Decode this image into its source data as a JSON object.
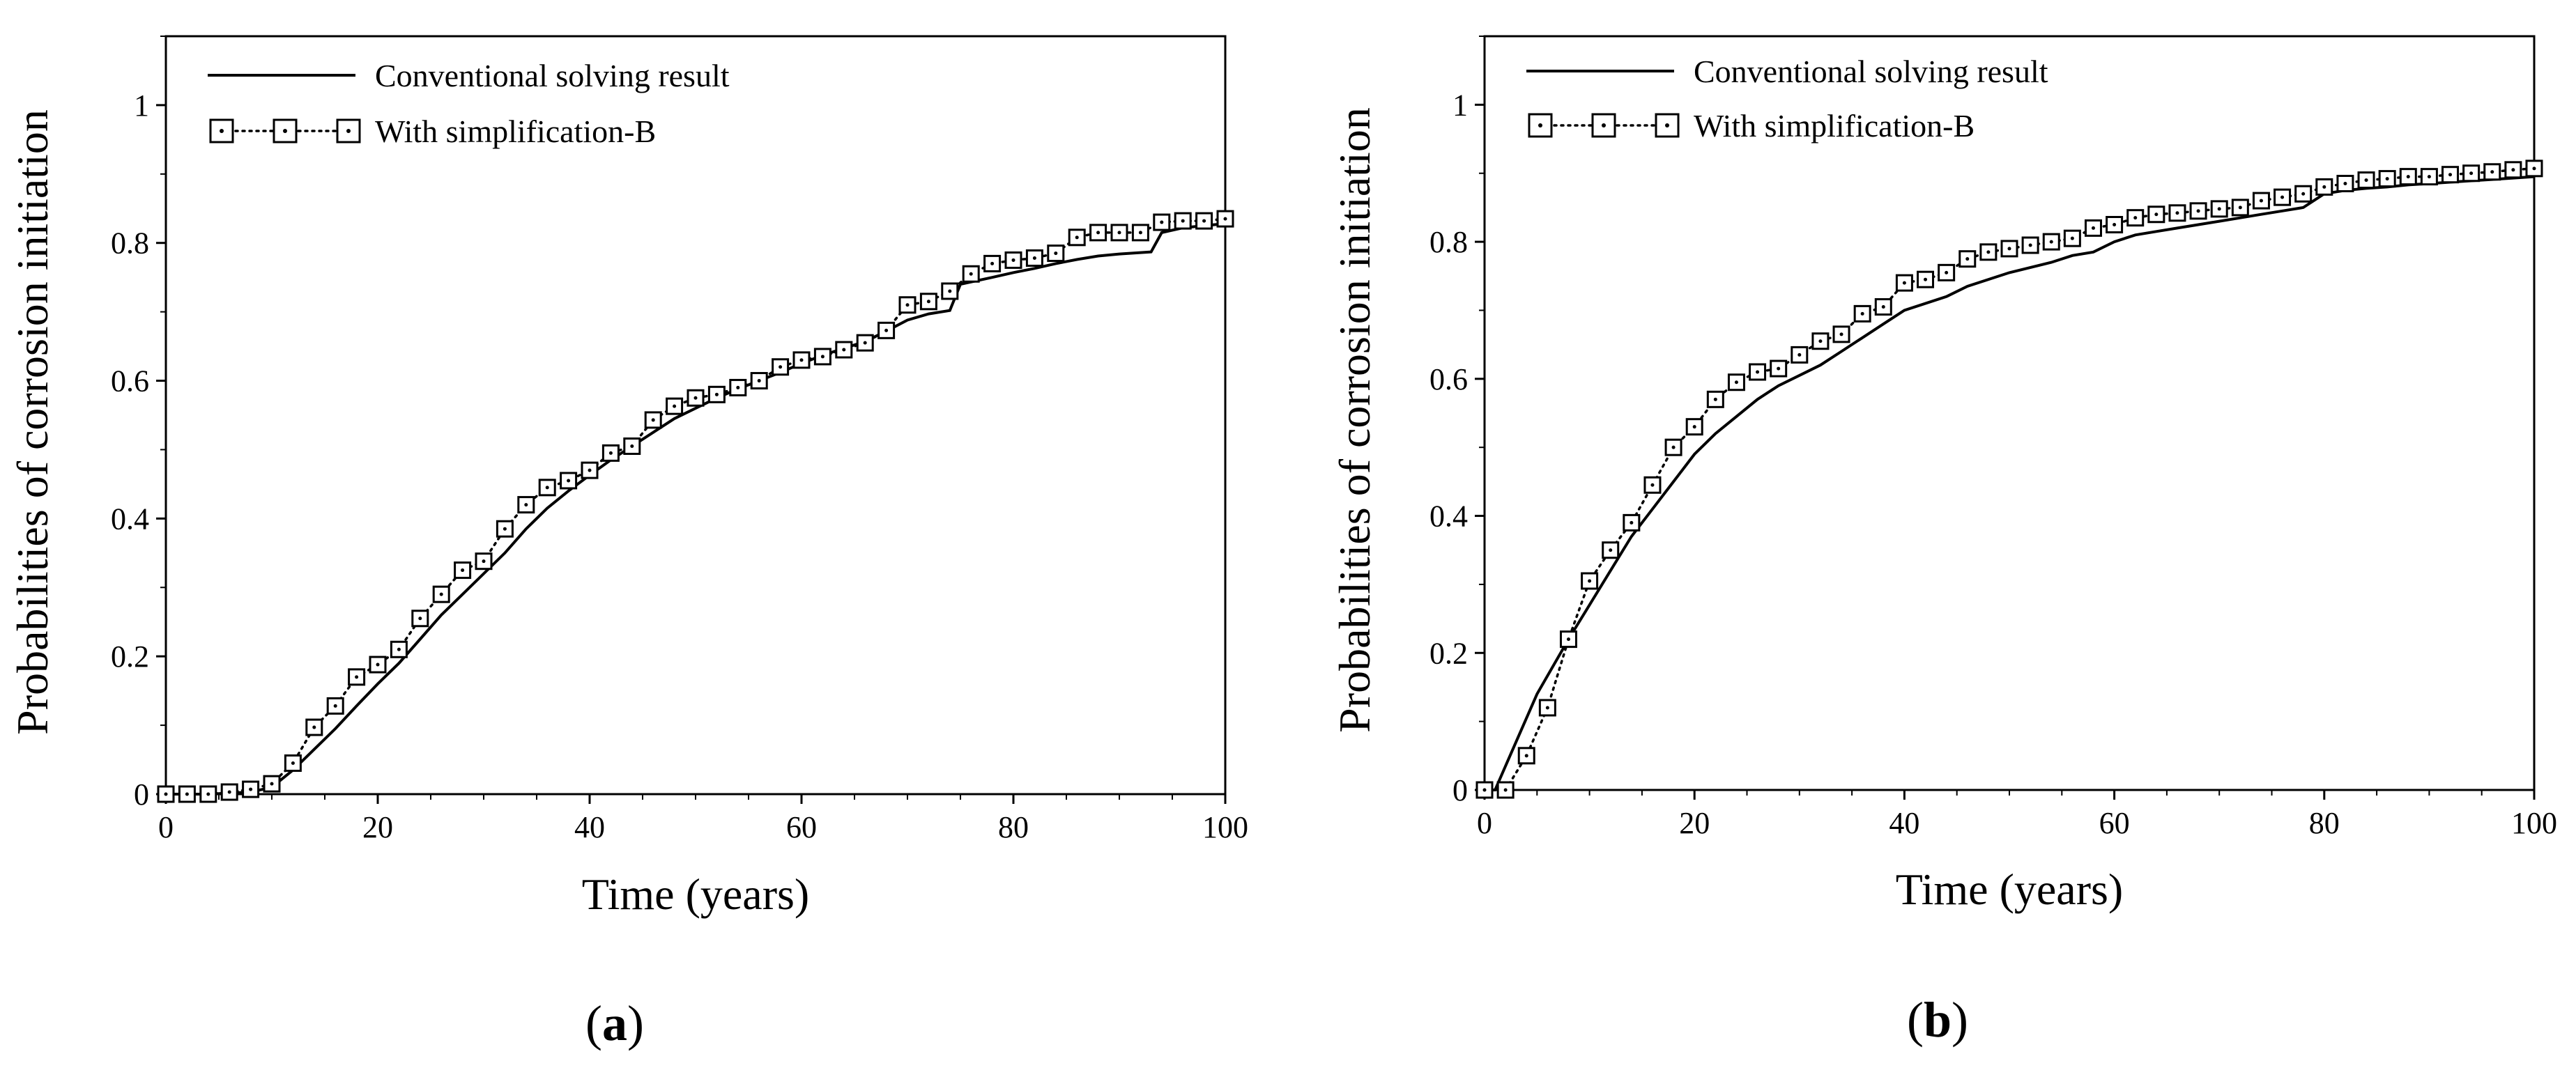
{
  "chart_data": [
    {
      "panel": "a",
      "type": "line",
      "xlabel": "Time (years)",
      "ylabel": "Probabilities of corrosion initiation",
      "xlim": [
        0,
        100
      ],
      "ylim": [
        0,
        1.1
      ],
      "xticks": [
        0,
        20,
        40,
        60,
        80,
        100
      ],
      "yticks": [
        0,
        0.2,
        0.4,
        0.6,
        0.8,
        1
      ],
      "xtick_labels": [
        "0",
        "20",
        "40",
        "60",
        "80",
        "100"
      ],
      "ytick_labels": [
        "0",
        "0.2",
        "0.4",
        "0.6",
        "0.8",
        "1"
      ],
      "legend_position": "top-left",
      "series": [
        {
          "name": "Conventional solving result",
          "style": "solid",
          "marker": "none",
          "x": [
            0,
            4,
            8,
            10,
            12,
            14,
            16,
            18,
            20,
            22,
            24,
            26,
            28,
            30,
            32,
            34,
            36,
            38,
            40,
            42,
            44,
            46,
            48,
            50,
            52,
            54,
            56,
            58,
            60,
            62,
            64,
            66,
            68,
            70,
            72,
            74,
            75,
            78,
            80,
            82,
            84,
            86,
            88,
            90,
            92,
            93,
            94,
            96,
            98,
            100
          ],
          "values": [
            0,
            0,
            0.003,
            0.01,
            0.035,
            0.065,
            0.095,
            0.128,
            0.16,
            0.19,
            0.225,
            0.26,
            0.29,
            0.32,
            0.35,
            0.385,
            0.415,
            0.44,
            0.463,
            0.485,
            0.505,
            0.525,
            0.545,
            0.56,
            0.575,
            0.588,
            0.6,
            0.612,
            0.625,
            0.637,
            0.647,
            0.657,
            0.672,
            0.688,
            0.697,
            0.702,
            0.74,
            0.75,
            0.757,
            0.763,
            0.77,
            0.776,
            0.781,
            0.784,
            0.786,
            0.787,
            0.815,
            0.822,
            0.825,
            0.828
          ]
        },
        {
          "name": "With simplification-B",
          "style": "dotted",
          "marker": "square",
          "x": [
            0,
            2,
            4,
            6,
            8,
            10,
            12,
            14,
            16,
            18,
            20,
            22,
            24,
            26,
            28,
            30,
            32,
            34,
            36,
            38,
            40,
            42,
            44,
            46,
            48,
            50,
            52,
            54,
            56,
            58,
            60,
            62,
            64,
            66,
            68,
            70,
            72,
            74,
            76,
            78,
            80,
            82,
            84,
            86,
            88,
            90,
            92,
            94,
            96,
            98,
            100
          ],
          "values": [
            0,
            0,
            0,
            0.003,
            0.007,
            0.015,
            0.045,
            0.097,
            0.128,
            0.17,
            0.188,
            0.21,
            0.255,
            0.29,
            0.325,
            0.338,
            0.385,
            0.42,
            0.445,
            0.455,
            0.47,
            0.495,
            0.505,
            0.543,
            0.563,
            0.575,
            0.58,
            0.59,
            0.6,
            0.62,
            0.63,
            0.635,
            0.645,
            0.655,
            0.673,
            0.71,
            0.715,
            0.73,
            0.755,
            0.77,
            0.775,
            0.778,
            0.785,
            0.808,
            0.815,
            0.815,
            0.815,
            0.83,
            0.832,
            0.832,
            0.835
          ]
        }
      ]
    },
    {
      "panel": "b",
      "type": "line",
      "xlabel": "Time (years)",
      "ylabel": "Probabilities of corrosion initiation",
      "xlim": [
        0,
        100
      ],
      "ylim": [
        0,
        1.1
      ],
      "xticks": [
        0,
        20,
        40,
        60,
        80,
        100
      ],
      "yticks": [
        0,
        0.2,
        0.4,
        0.6,
        0.8,
        1
      ],
      "xtick_labels": [
        "0",
        "20",
        "40",
        "60",
        "80",
        "100"
      ],
      "ytick_labels": [
        "0",
        "0.2",
        "0.4",
        "0.6",
        "0.8",
        "1"
      ],
      "legend_position": "top-left",
      "series": [
        {
          "name": "Conventional solving result",
          "style": "solid",
          "marker": "none",
          "x": [
            0,
            1,
            3,
            5,
            8,
            10,
            12,
            14,
            16,
            18,
            20,
            22,
            24,
            26,
            28,
            30,
            32,
            34,
            36,
            38,
            40,
            44,
            46,
            50,
            54,
            56,
            58,
            60,
            62,
            64,
            66,
            68,
            70,
            72,
            74,
            76,
            78,
            80,
            82,
            84,
            86,
            88,
            90,
            92,
            94,
            96,
            98,
            100
          ],
          "values": [
            0,
            0,
            0.07,
            0.14,
            0.22,
            0.27,
            0.32,
            0.37,
            0.41,
            0.45,
            0.49,
            0.52,
            0.545,
            0.57,
            0.59,
            0.605,
            0.62,
            0.64,
            0.66,
            0.68,
            0.7,
            0.72,
            0.735,
            0.755,
            0.77,
            0.78,
            0.785,
            0.8,
            0.81,
            0.815,
            0.82,
            0.825,
            0.83,
            0.835,
            0.84,
            0.845,
            0.85,
            0.87,
            0.875,
            0.878,
            0.88,
            0.883,
            0.885,
            0.887,
            0.889,
            0.891,
            0.893,
            0.895
          ]
        },
        {
          "name": "With simplification-B",
          "style": "dotted",
          "marker": "square",
          "x": [
            0,
            2,
            4,
            6,
            8,
            10,
            12,
            14,
            16,
            18,
            20,
            22,
            24,
            26,
            28,
            30,
            32,
            34,
            36,
            38,
            40,
            42,
            44,
            46,
            48,
            50,
            52,
            54,
            56,
            58,
            60,
            62,
            64,
            66,
            68,
            70,
            72,
            74,
            76,
            78,
            80,
            82,
            84,
            86,
            88,
            90,
            92,
            94,
            96,
            98,
            100
          ],
          "values": [
            0,
            0,
            0.05,
            0.12,
            0.22,
            0.305,
            0.35,
            0.39,
            0.445,
            0.5,
            0.53,
            0.57,
            0.595,
            0.61,
            0.615,
            0.635,
            0.655,
            0.665,
            0.695,
            0.705,
            0.74,
            0.745,
            0.755,
            0.775,
            0.785,
            0.79,
            0.795,
            0.8,
            0.805,
            0.82,
            0.825,
            0.835,
            0.84,
            0.842,
            0.845,
            0.848,
            0.85,
            0.86,
            0.865,
            0.87,
            0.88,
            0.885,
            0.89,
            0.892,
            0.895,
            0.895,
            0.898,
            0.9,
            0.902,
            0.905,
            0.907
          ]
        }
      ]
    }
  ],
  "panel_labels": {
    "a": {
      "open": "(",
      "letter": "a",
      "close": ")"
    },
    "b": {
      "open": "(",
      "letter": "b",
      "close": ")"
    }
  }
}
